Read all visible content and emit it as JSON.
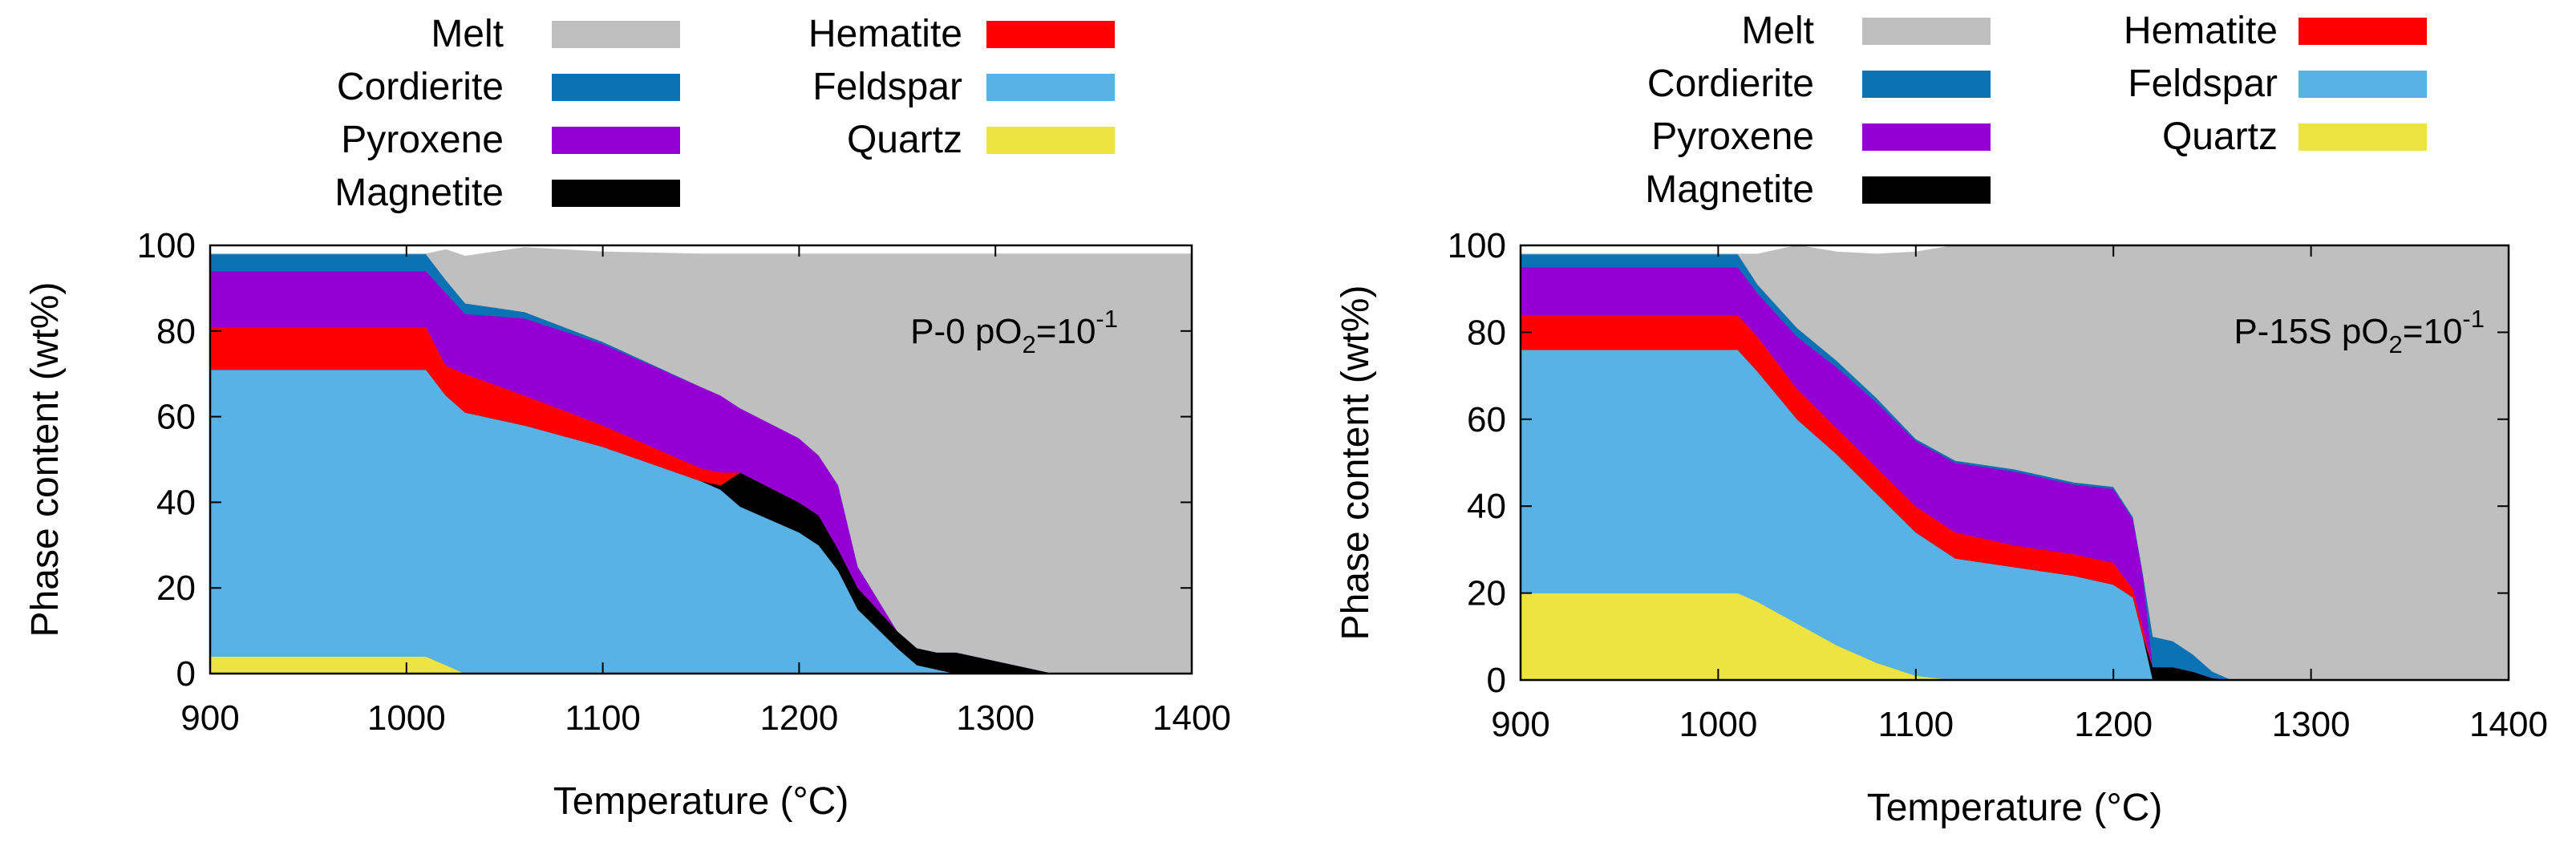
{
  "chart_data": [
    {
      "type": "area",
      "stacking": "stacked",
      "annotation": {
        "prefix": "P-0 pO",
        "sub": "2",
        "mid": "=10",
        "sup": "-1"
      },
      "xlabel": "Temperature (°C)",
      "ylabel": "Phase content (wt%)",
      "xlim": [
        900,
        1400
      ],
      "ylim": [
        0,
        100
      ],
      "xticks": [
        900,
        1000,
        1100,
        1200,
        1300,
        1400
      ],
      "yticks": [
        0,
        20,
        40,
        60,
        80,
        100
      ],
      "grid": false,
      "legend": {
        "placement": "top",
        "columns": 2
      },
      "x": [
        900,
        1000,
        1010,
        1020,
        1030,
        1060,
        1100,
        1150,
        1160,
        1170,
        1200,
        1210,
        1220,
        1230,
        1250,
        1260,
        1270,
        1280,
        1300,
        1330,
        1400
      ],
      "series": [
        {
          "name": "Quartz",
          "color": "#ede442",
          "values": [
            4,
            4,
            4,
            2,
            0,
            0,
            0,
            0,
            0,
            0,
            0,
            0,
            0,
            0,
            0,
            0,
            0,
            0,
            0,
            0,
            0
          ]
        },
        {
          "name": "Feldspar",
          "color": "#58b2e6",
          "values": [
            67,
            67,
            67,
            63,
            61,
            58,
            53,
            45,
            43,
            39,
            33,
            30,
            24,
            15,
            6,
            2,
            1,
            0,
            0,
            0,
            0
          ]
        },
        {
          "name": "Magnetite",
          "color": "#000000",
          "values": [
            0,
            0,
            0,
            0,
            0,
            0,
            0,
            0,
            1,
            8,
            7,
            7,
            5,
            5,
            4,
            4,
            4,
            5,
            3,
            0,
            0
          ]
        },
        {
          "name": "Hematite",
          "color": "#ff0000",
          "values": [
            10,
            10,
            10,
            7,
            9,
            7,
            5,
            3,
            3,
            0,
            0,
            0,
            0,
            0,
            0,
            0,
            0,
            0,
            0,
            0,
            0
          ]
        },
        {
          "name": "Pyroxene",
          "color": "#9400d3",
          "values": [
            13,
            13,
            13,
            17,
            14,
            18,
            19,
            19,
            18,
            15,
            15,
            14,
            15,
            5,
            0,
            0,
            0,
            0,
            0,
            0,
            0
          ]
        },
        {
          "name": "Cordierite",
          "color": "#0a72b5",
          "values": [
            4,
            4,
            4,
            3,
            2.5,
            1.5,
            0.5,
            0,
            0,
            0,
            0,
            0,
            0,
            0,
            0,
            0,
            0,
            0,
            0,
            0,
            0
          ]
        },
        {
          "name": "Melt",
          "color": "#bfbfbf",
          "values": [
            0,
            0,
            0,
            7,
            11,
            15,
            21,
            31,
            33,
            36,
            43,
            47,
            54,
            73,
            88,
            92,
            93,
            93,
            95,
            98,
            98
          ]
        }
      ]
    },
    {
      "type": "area",
      "stacking": "stacked",
      "annotation": {
        "prefix": "P-15S pO",
        "sub": "2",
        "mid": "=10",
        "sup": "-1"
      },
      "xlabel": "Temperature (°C)",
      "ylabel": "Phase content (wt%)",
      "xlim": [
        900,
        1400
      ],
      "ylim": [
        0,
        100
      ],
      "xticks": [
        900,
        1000,
        1100,
        1200,
        1300,
        1400
      ],
      "yticks": [
        0,
        20,
        40,
        60,
        80,
        100
      ],
      "grid": false,
      "legend": {
        "placement": "top",
        "columns": 2
      },
      "x": [
        900,
        1010,
        1020,
        1040,
        1060,
        1080,
        1100,
        1120,
        1150,
        1180,
        1200,
        1210,
        1215,
        1220,
        1230,
        1240,
        1250,
        1260,
        1300,
        1400
      ],
      "series": [
        {
          "name": "Quartz",
          "color": "#ede442",
          "values": [
            20,
            20,
            18,
            13,
            8,
            4,
            1,
            0,
            0,
            0,
            0,
            0,
            0,
            0,
            0,
            0,
            0,
            0,
            0,
            0
          ]
        },
        {
          "name": "Feldspar",
          "color": "#58b2e6",
          "values": [
            56,
            56,
            53,
            47,
            44,
            39,
            33,
            28,
            26,
            24,
            22,
            19,
            10,
            0,
            0,
            0,
            0,
            0,
            0,
            0
          ]
        },
        {
          "name": "Magnetite",
          "color": "#000000",
          "values": [
            0,
            0,
            0,
            0,
            0,
            0,
            0,
            0,
            0,
            0,
            0,
            0,
            0,
            3,
            3,
            2,
            0.5,
            0,
            0,
            0
          ]
        },
        {
          "name": "Hematite",
          "color": "#ff0000",
          "values": [
            8,
            8,
            8,
            7,
            6,
            6,
            6,
            6,
            5,
            5,
            5,
            2,
            2,
            0,
            0,
            0,
            0,
            0,
            0,
            0
          ]
        },
        {
          "name": "Pyroxene",
          "color": "#9400d3",
          "values": [
            11,
            11,
            10,
            12,
            14,
            15,
            15,
            16,
            17,
            16,
            17,
            16,
            12,
            0,
            0,
            0,
            0,
            0,
            0,
            0
          ]
        },
        {
          "name": "Cordierite",
          "color": "#0a72b5",
          "values": [
            3,
            3,
            2,
            2,
            1.5,
            1,
            0.5,
            0.5,
            0.5,
            0.5,
            0.5,
            0.5,
            0.5,
            7,
            6,
            4,
            1.5,
            0,
            0,
            0
          ]
        },
        {
          "name": "Melt",
          "color": "#bfbfbf",
          "values": [
            0,
            0,
            7,
            19,
            25,
            33,
            43,
            49.5,
            51.5,
            54.5,
            55.5,
            62.5,
            75.5,
            90,
            91,
            94,
            98,
            100,
            100,
            100
          ]
        }
      ]
    }
  ],
  "legend_order": [
    [
      "Melt",
      "Hematite"
    ],
    [
      "Cordierite",
      "Feldspar"
    ],
    [
      "Pyroxene",
      "Quartz"
    ],
    [
      "Magnetite",
      null
    ]
  ]
}
